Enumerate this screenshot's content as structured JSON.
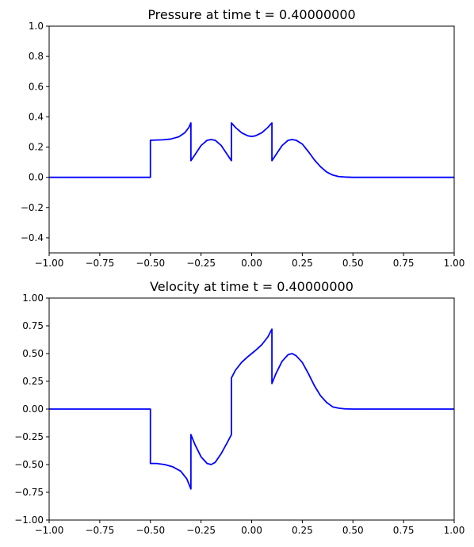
{
  "chart_data": [
    {
      "type": "line",
      "title": "Pressure at time t =     0.40000000",
      "xlabel": "",
      "ylabel": "",
      "xlim": [
        -1,
        1
      ],
      "ylim": [
        -0.5,
        1.0
      ],
      "grid": false,
      "xticks": [
        -1.0,
        -0.75,
        -0.5,
        -0.25,
        0.0,
        0.25,
        0.5,
        0.75,
        1.0
      ],
      "xtick_labels": [
        "−1.00",
        "−0.75",
        "−0.50",
        "−0.25",
        "0.00",
        "0.25",
        "0.50",
        "0.75",
        "1.00"
      ],
      "yticks": [
        -0.4,
        -0.2,
        0.0,
        0.2,
        0.4,
        0.6,
        0.8,
        1.0
      ],
      "ytick_labels": [
        "−0.4",
        "−0.2",
        "0.0",
        "0.2",
        "0.4",
        "0.6",
        "0.8",
        "1.0"
      ],
      "series": [
        {
          "color": "#0000ff",
          "x": [
            -1.0,
            -0.5,
            -0.5,
            -0.48,
            -0.44,
            -0.4,
            -0.36,
            -0.33,
            -0.31,
            -0.3,
            -0.3,
            -0.28,
            -0.25,
            -0.22,
            -0.2,
            -0.18,
            -0.15,
            -0.12,
            -0.1,
            -0.1,
            -0.08,
            -0.05,
            -0.02,
            0.0,
            0.02,
            0.05,
            0.08,
            0.1,
            0.1,
            0.12,
            0.15,
            0.18,
            0.2,
            0.22,
            0.25,
            0.28,
            0.31,
            0.34,
            0.37,
            0.4,
            0.43,
            0.46,
            0.5,
            0.55,
            1.0
          ],
          "y": [
            0.0,
            0.0,
            0.245,
            0.246,
            0.248,
            0.253,
            0.268,
            0.295,
            0.33,
            0.36,
            0.11,
            0.15,
            0.21,
            0.245,
            0.25,
            0.245,
            0.21,
            0.15,
            0.11,
            0.36,
            0.33,
            0.295,
            0.275,
            0.27,
            0.275,
            0.295,
            0.33,
            0.36,
            0.11,
            0.15,
            0.21,
            0.245,
            0.25,
            0.245,
            0.22,
            0.17,
            0.115,
            0.07,
            0.035,
            0.015,
            0.005,
            0.002,
            0.0,
            0.0,
            0.0
          ]
        }
      ]
    },
    {
      "type": "line",
      "title": "Velocity at time t =     0.40000000",
      "xlabel": "",
      "ylabel": "",
      "xlim": [
        -1,
        1
      ],
      "ylim": [
        -1.0,
        1.0
      ],
      "grid": false,
      "xticks": [
        -1.0,
        -0.75,
        -0.5,
        -0.25,
        0.0,
        0.25,
        0.5,
        0.75,
        1.0
      ],
      "xtick_labels": [
        "−1.00",
        "−0.75",
        "−0.50",
        "−0.25",
        "0.00",
        "0.25",
        "0.50",
        "0.75",
        "1.00"
      ],
      "yticks": [
        -1.0,
        -0.75,
        -0.5,
        -0.25,
        0.0,
        0.25,
        0.5,
        0.75,
        1.0
      ],
      "ytick_labels": [
        "−1.00",
        "−0.75",
        "−0.50",
        "−0.25",
        "0.00",
        "0.25",
        "0.50",
        "0.75",
        "1.00"
      ],
      "series": [
        {
          "color": "#0000ff",
          "x": [
            -1.0,
            -0.5,
            -0.5,
            -0.47,
            -0.43,
            -0.39,
            -0.35,
            -0.32,
            -0.3,
            -0.3,
            -0.28,
            -0.25,
            -0.22,
            -0.2,
            -0.18,
            -0.15,
            -0.12,
            -0.1,
            -0.1,
            -0.08,
            -0.05,
            -0.02,
            0.0,
            0.02,
            0.05,
            0.08,
            0.1,
            0.1,
            0.12,
            0.15,
            0.18,
            0.2,
            0.22,
            0.25,
            0.28,
            0.31,
            0.34,
            0.37,
            0.4,
            0.43,
            0.46,
            0.5,
            0.55,
            1.0
          ],
          "y": [
            0.0,
            0.0,
            -0.49,
            -0.49,
            -0.5,
            -0.52,
            -0.56,
            -0.63,
            -0.72,
            -0.23,
            -0.32,
            -0.43,
            -0.49,
            -0.5,
            -0.48,
            -0.4,
            -0.3,
            -0.23,
            0.28,
            0.35,
            0.42,
            0.47,
            0.5,
            0.53,
            0.58,
            0.65,
            0.72,
            0.23,
            0.32,
            0.43,
            0.49,
            0.5,
            0.48,
            0.42,
            0.32,
            0.21,
            0.12,
            0.06,
            0.02,
            0.008,
            0.002,
            0.0,
            0.0,
            0.0
          ]
        }
      ]
    }
  ]
}
